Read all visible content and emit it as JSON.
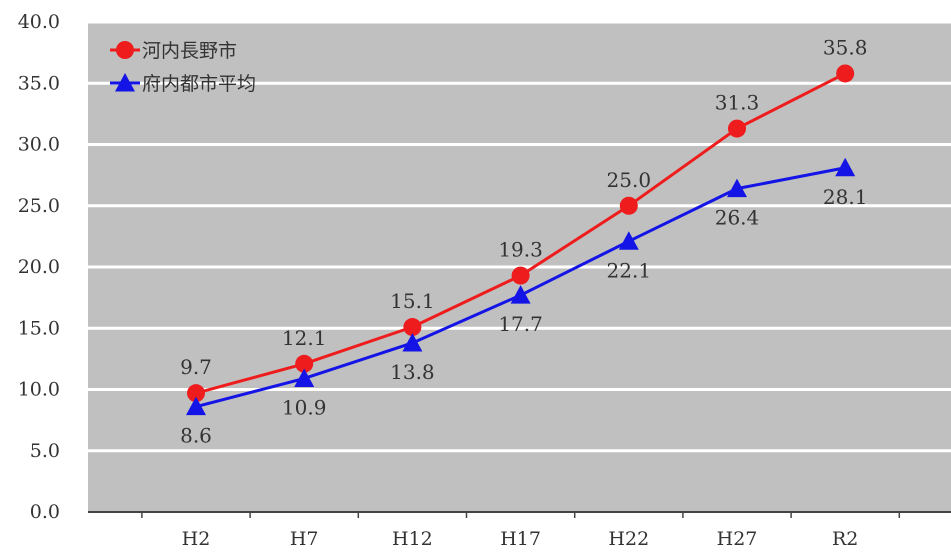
{
  "chart_data": {
    "type": "line",
    "categories": [
      "H2",
      "H7",
      "H12",
      "H17",
      "H22",
      "H27",
      "R2"
    ],
    "series": [
      {
        "name": "河内長野市",
        "values": [
          9.7,
          12.1,
          15.1,
          19.3,
          25.0,
          31.3,
          35.8
        ],
        "labels": [
          "9.7",
          "12.1",
          "15.1",
          "19.3",
          "25.0",
          "31.3",
          "35.8"
        ],
        "color": "#ee1c1c",
        "marker": "circle",
        "label_position": "above"
      },
      {
        "name": "府内都市平均",
        "values": [
          8.6,
          10.9,
          13.8,
          17.7,
          22.1,
          26.4,
          28.1
        ],
        "labels": [
          "8.6",
          "10.9",
          "13.8",
          "17.7",
          "22.1",
          "26.4",
          "28.1"
        ],
        "color": "#1414e6",
        "marker": "triangle",
        "label_position": "below"
      }
    ],
    "y_ticks": [
      "0.0",
      "5.0",
      "10.0",
      "15.0",
      "20.0",
      "25.0",
      "30.0",
      "35.0",
      "40.0"
    ],
    "ylim": [
      0,
      40
    ],
    "title": "",
    "xlabel": "",
    "ylabel": "",
    "grid": true,
    "legend_position": "top-left",
    "plot_background": "#c0c0c0",
    "grid_color": "#ffffff"
  }
}
